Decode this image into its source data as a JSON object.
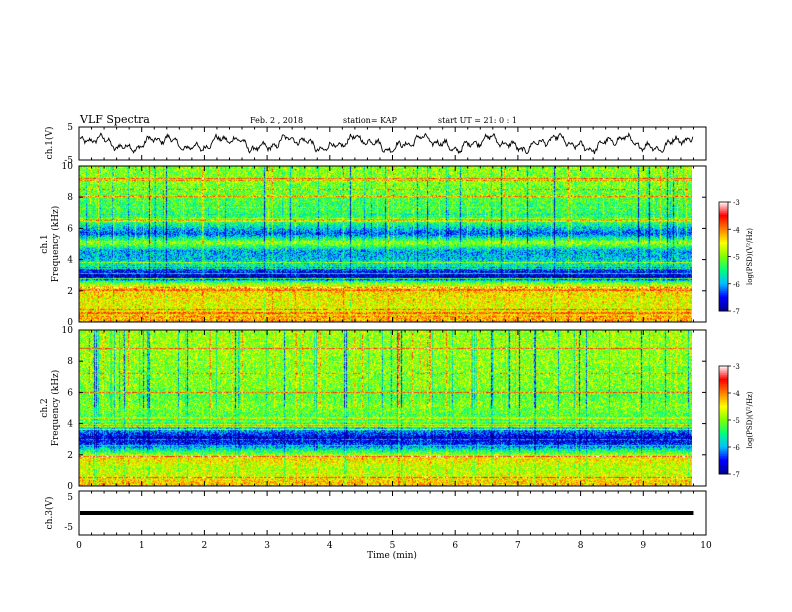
{
  "header": {
    "title": "VLF Spectra",
    "date": "Feb. 2 , 2018",
    "station": "station= KAP",
    "start": "start UT =  21: 0  : 1"
  },
  "chart_data": {
    "type": "heatmap",
    "xlabel": "Time (min)",
    "xlim": [
      0,
      10
    ],
    "x_ticks": [
      "0",
      "1",
      "2",
      "3",
      "4",
      "5",
      "6",
      "7",
      "8",
      "9",
      "10"
    ],
    "data_end_min": 9.8,
    "panels": [
      {
        "kind": "waveform",
        "ylabel": "ch.1(V)",
        "ylim": [
          -5,
          5
        ],
        "y_ticks": [
          "5",
          "-5"
        ]
      },
      {
        "kind": "spectrogram",
        "ylabel_top": "ch.1",
        "ylabel": "Frequency (kHz)",
        "ylim": [
          0,
          10
        ],
        "y_ticks": [
          "0",
          "2",
          "4",
          "6",
          "8",
          "10"
        ],
        "bands_khz": [
          {
            "f": 0.3,
            "level": -4.2
          },
          {
            "f": 0.6,
            "level": -4.5
          },
          {
            "f": 1.0,
            "level": -4.6
          },
          {
            "f": 1.6,
            "level": -4.5
          },
          {
            "f": 2.2,
            "level": -4.3
          },
          {
            "f": 2.5,
            "level": -5.0
          },
          {
            "f": 2.9,
            "level": -6.8
          },
          {
            "f": 3.3,
            "level": -6.5
          },
          {
            "f": 3.7,
            "level": -5.6
          },
          {
            "f": 4.1,
            "level": -5.9
          },
          {
            "f": 4.6,
            "level": -6.0
          },
          {
            "f": 5.1,
            "level": -4.9
          },
          {
            "f": 5.7,
            "level": -6.3
          },
          {
            "f": 6.4,
            "level": -5.4
          },
          {
            "f": 7.5,
            "level": -5.3
          },
          {
            "f": 9.0,
            "level": -5.0
          }
        ]
      },
      {
        "kind": "spectrogram",
        "ylabel_top": "ch.2",
        "ylabel": "Frequency (kHz)",
        "ylim": [
          0,
          10
        ],
        "y_ticks": [
          "0",
          "2",
          "4",
          "6",
          "8",
          "10"
        ],
        "bands_khz": [
          {
            "f": 0.3,
            "level": -4.3
          },
          {
            "f": 0.7,
            "level": -4.7
          },
          {
            "f": 1.2,
            "level": -4.8
          },
          {
            "f": 1.8,
            "level": -4.4
          },
          {
            "f": 2.3,
            "level": -5.5
          },
          {
            "f": 2.7,
            "level": -6.4
          },
          {
            "f": 3.1,
            "level": -6.8
          },
          {
            "f": 3.5,
            "level": -6.2
          },
          {
            "f": 4.0,
            "level": -5.3
          },
          {
            "f": 4.6,
            "level": -5.2
          },
          {
            "f": 5.2,
            "level": -5.0
          },
          {
            "f": 5.8,
            "level": -5.2
          },
          {
            "f": 6.5,
            "level": -5.0
          },
          {
            "f": 7.6,
            "level": -5.0
          },
          {
            "f": 9.0,
            "level": -4.9
          }
        ]
      },
      {
        "kind": "waveform",
        "ylabel": "ch.3(V)",
        "ylim": [
          -5,
          5
        ],
        "y_ticks": [
          "5",
          "-5"
        ],
        "flat_value": 0
      }
    ],
    "colorbar": {
      "label": "log(PSD)(V²/Hz)",
      "range": [
        -7,
        -3
      ],
      "ticks": [
        "-3",
        "-4",
        "-5",
        "-6",
        "-7"
      ],
      "colors": [
        "#00008f",
        "#0000ff",
        "#00bfff",
        "#00ff80",
        "#7fff00",
        "#ffff00",
        "#ff8000",
        "#ff0000",
        "#ffffff"
      ]
    }
  }
}
